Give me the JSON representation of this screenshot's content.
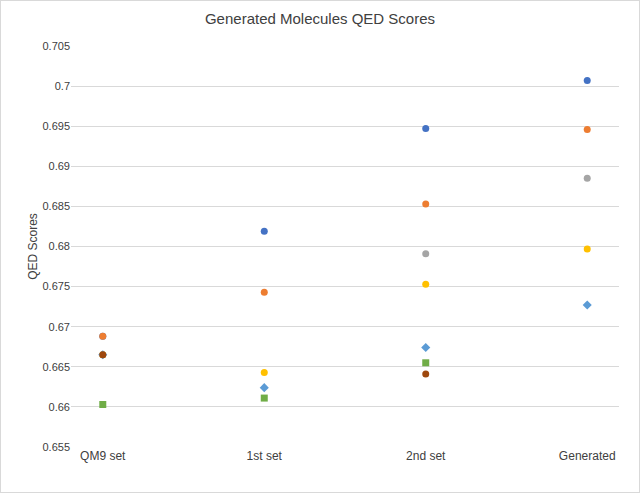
{
  "chart_data": {
    "type": "scatter",
    "title": "Generated Molecules QED Scores",
    "y_label": "QED Scores",
    "categories": [
      "QM9 set",
      "1st set",
      "2nd set",
      "Generated"
    ],
    "series": [
      {
        "color": "#4472c4",
        "marker": "circle",
        "values": [
          0.6688,
          0.6819,
          0.6947,
          0.7007
        ]
      },
      {
        "color": "#ed7d31",
        "marker": "circle",
        "values": [
          0.6688,
          0.6743,
          0.6853,
          0.6946
        ]
      },
      {
        "color": "#a5a5a5",
        "marker": "circle",
        "values": [
          0.6665,
          null,
          0.6791,
          0.6885
        ]
      },
      {
        "color": "#ffc000",
        "marker": "circle",
        "values": [
          0.6665,
          0.6643,
          0.6753,
          0.6797
        ]
      },
      {
        "color": "#5b9bd5",
        "marker": "diamond",
        "values": [
          0.6665,
          0.6624,
          0.6674,
          0.6727
        ]
      },
      {
        "color": "#70ad47",
        "marker": "square",
        "values": [
          0.6603,
          0.6611,
          0.6655,
          null
        ]
      },
      {
        "color": "#9e480e",
        "marker": "circle",
        "values": [
          0.6665,
          null,
          0.6641,
          null
        ]
      }
    ],
    "ylim": [
      0.655,
      0.705
    ],
    "yticks": [
      0.655,
      0.66,
      0.665,
      0.67,
      0.675,
      0.68,
      0.685,
      0.69,
      0.695,
      0.7,
      0.705
    ],
    "grid": true
  }
}
